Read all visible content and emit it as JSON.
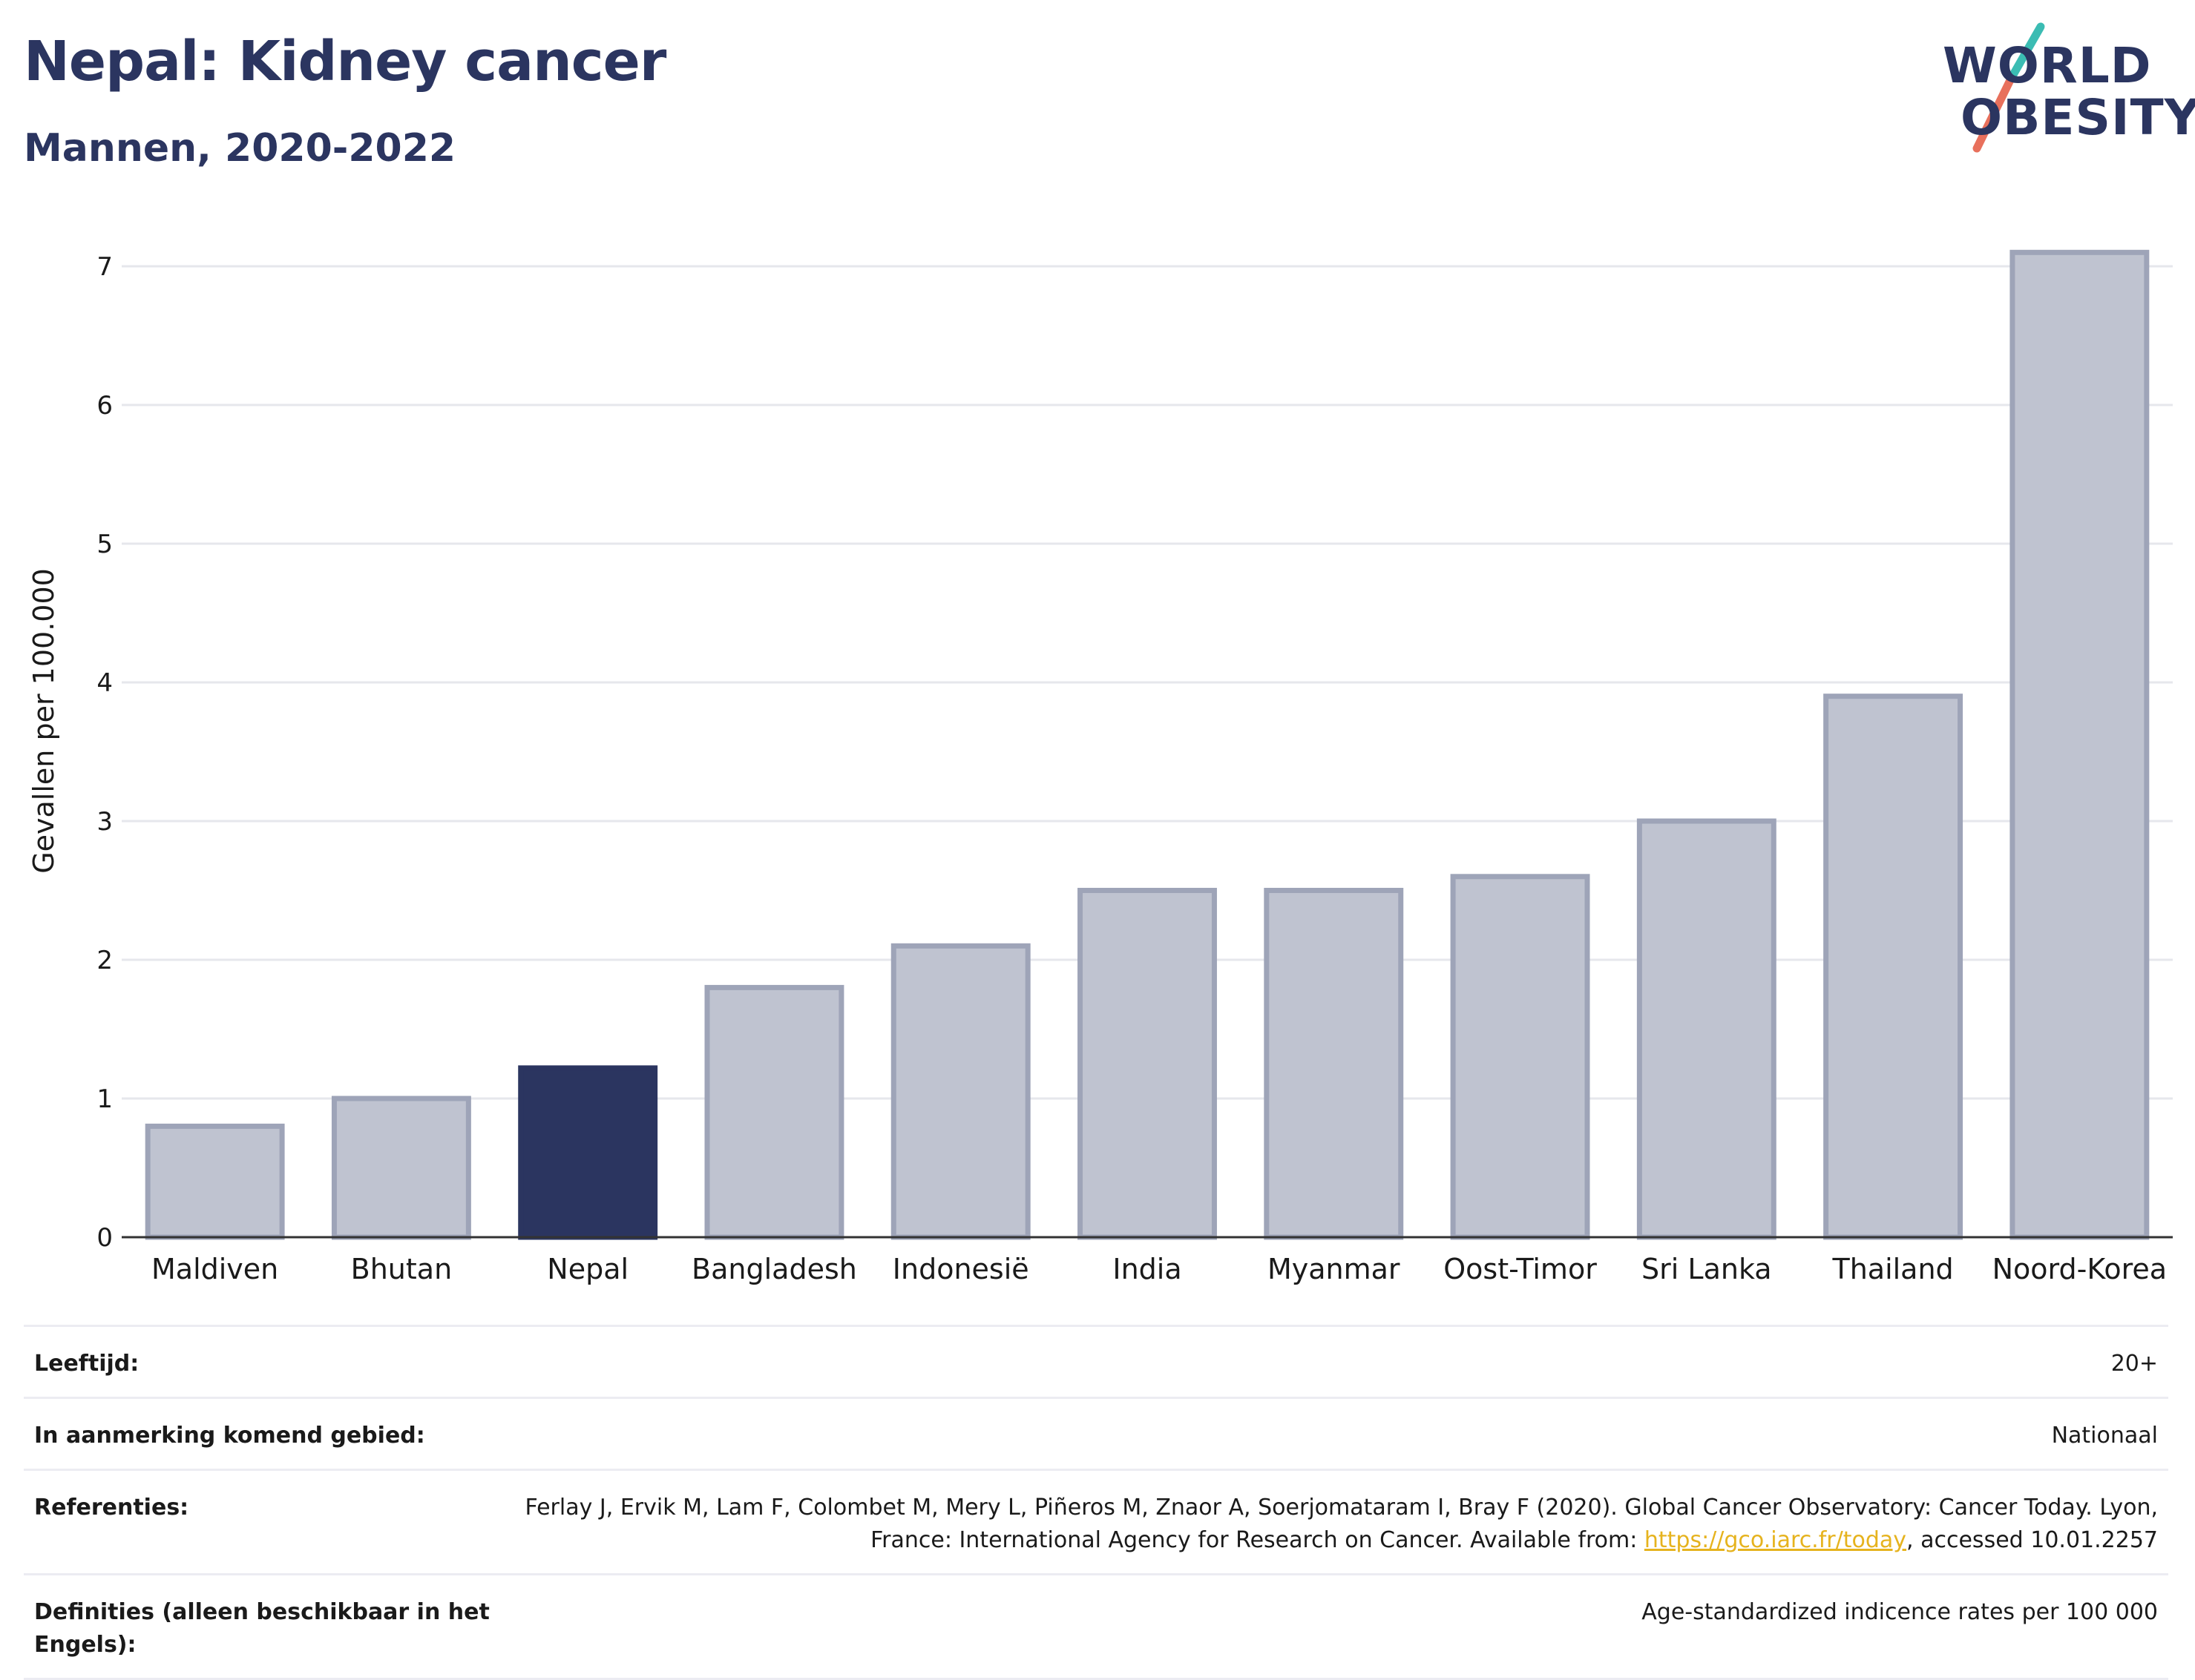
{
  "header": {
    "title": "Nepal: Kidney cancer",
    "subtitle": "Mannen, 2020-2022"
  },
  "logo": {
    "line1": "WORLD",
    "line2": "OBESITY",
    "colors": {
      "text": "#2b3560",
      "slash_top": "#3bbcb3",
      "slash_bottom": "#e8705c"
    }
  },
  "chart_data": {
    "type": "bar",
    "ylabel": "Gevallen per 100.000",
    "xlabel": "",
    "ylim": [
      0,
      7.3
    ],
    "yticks": [
      0,
      1,
      2,
      3,
      4,
      5,
      6,
      7
    ],
    "grid": true,
    "categories": [
      "Maldiven",
      "Bhutan",
      "Nepal",
      "Bangladesh",
      "Indonesië",
      "India",
      "Myanmar",
      "Oost-Timor",
      "Sri Lanka",
      "Thailand",
      "Noord-Korea"
    ],
    "values": [
      0.8,
      1.0,
      1.22,
      1.8,
      2.1,
      2.5,
      2.5,
      2.6,
      3.0,
      3.9,
      7.1
    ],
    "highlight": "Nepal",
    "colors": {
      "bar": "#bfc3d0",
      "bar_border": "#9ea4b8",
      "highlight": "#2b3560",
      "grid": "#e6e7ec",
      "axis": "#333333"
    }
  },
  "info": {
    "rows": [
      {
        "label": "Leeftijd:",
        "value": "20+"
      },
      {
        "label": "In aanmerking komend gebied:",
        "value": "Nationaal"
      },
      {
        "label": "Referenties:",
        "value_before": "Ferlay J, Ervik M, Lam F, Colombet M, Mery L, Piñeros M, Znaor A, Soerjomataram I, Bray F (2020). Global Cancer Observatory: Cancer Today. Lyon, France: International Agency for Research on Cancer. Available from: ",
        "link": "https://gco.iarc.fr/today",
        "value_after": ", accessed 10.01.2257"
      },
      {
        "label": "Definities (alleen beschikbaar in het Engels):",
        "value": "Age-standardized indicence rates per 100 000"
      }
    ]
  }
}
